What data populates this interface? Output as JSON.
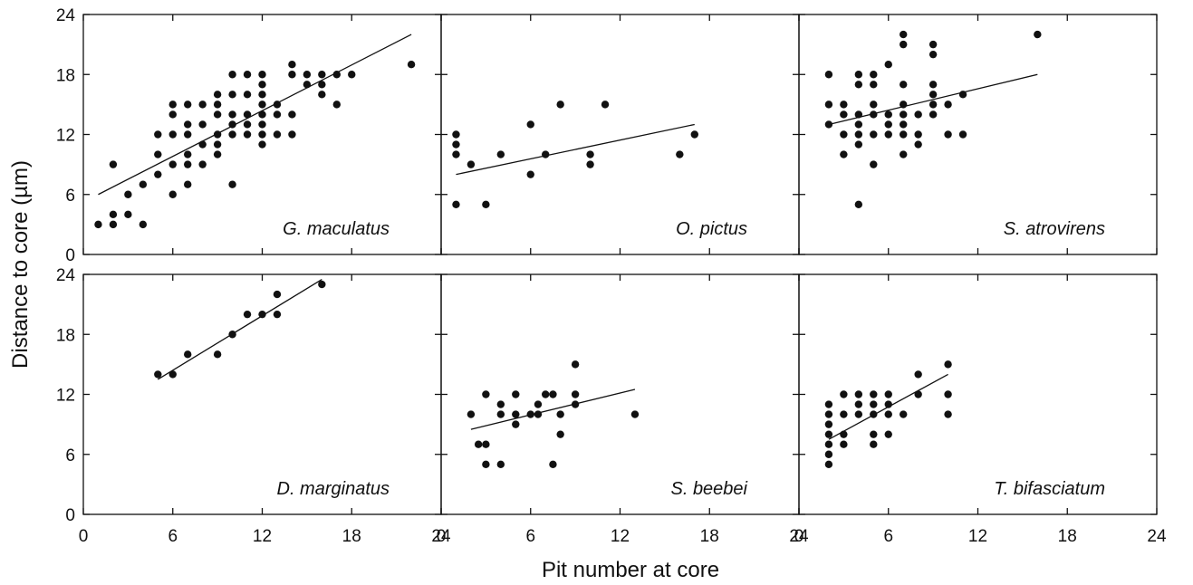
{
  "figure": {
    "ylabel": "Distance to core (µm)",
    "xlabel": "Pit number at core"
  },
  "chart_data": [
    {
      "type": "scatter",
      "label": "G. maculatus",
      "xlim": [
        0,
        24
      ],
      "ylim": [
        0,
        24
      ],
      "xticks": [
        "0",
        "6",
        "12",
        "18",
        "24"
      ],
      "yticks": [
        "0",
        "6",
        "12",
        "18",
        "24"
      ],
      "points": [
        [
          1,
          3
        ],
        [
          2,
          3
        ],
        [
          2,
          4
        ],
        [
          2,
          9
        ],
        [
          3,
          4
        ],
        [
          3,
          6
        ],
        [
          4,
          3
        ],
        [
          4,
          7
        ],
        [
          5,
          8
        ],
        [
          5,
          10
        ],
        [
          5,
          12
        ],
        [
          6,
          6
        ],
        [
          6,
          9
        ],
        [
          6,
          12
        ],
        [
          6,
          14
        ],
        [
          6,
          15
        ],
        [
          7,
          7
        ],
        [
          7,
          9
        ],
        [
          7,
          10
        ],
        [
          7,
          12
        ],
        [
          7,
          13
        ],
        [
          7,
          15
        ],
        [
          8,
          9
        ],
        [
          8,
          11
        ],
        [
          8,
          13
        ],
        [
          8,
          15
        ],
        [
          9,
          10
        ],
        [
          9,
          11
        ],
        [
          9,
          12
        ],
        [
          9,
          14
        ],
        [
          9,
          15
        ],
        [
          9,
          16
        ],
        [
          10,
          7
        ],
        [
          10,
          12
        ],
        [
          10,
          13
        ],
        [
          10,
          14
        ],
        [
          10,
          16
        ],
        [
          10,
          18
        ],
        [
          11,
          12
        ],
        [
          11,
          13
        ],
        [
          11,
          14
        ],
        [
          11,
          16
        ],
        [
          11,
          18
        ],
        [
          12,
          11
        ],
        [
          12,
          12
        ],
        [
          12,
          13
        ],
        [
          12,
          14
        ],
        [
          12,
          15
        ],
        [
          12,
          16
        ],
        [
          12,
          17
        ],
        [
          12,
          18
        ],
        [
          13,
          12
        ],
        [
          13,
          14
        ],
        [
          13,
          15
        ],
        [
          14,
          12
        ],
        [
          14,
          14
        ],
        [
          14,
          18
        ],
        [
          14,
          19
        ],
        [
          15,
          17
        ],
        [
          15,
          18
        ],
        [
          16,
          16
        ],
        [
          16,
          17
        ],
        [
          16,
          18
        ],
        [
          17,
          15
        ],
        [
          17,
          18
        ],
        [
          18,
          18
        ],
        [
          22,
          19
        ]
      ],
      "fit": [
        [
          1,
          6
        ],
        [
          22,
          22
        ]
      ]
    },
    {
      "type": "scatter",
      "label": "O. pictus",
      "xlim": [
        0,
        24
      ],
      "ylim": [
        0,
        24
      ],
      "xticks": [
        "0",
        "6",
        "12",
        "18",
        "24"
      ],
      "yticks": [
        "",
        "",
        "",
        "",
        ""
      ],
      "points": [
        [
          1,
          5
        ],
        [
          1,
          10
        ],
        [
          1,
          11
        ],
        [
          1,
          12
        ],
        [
          2,
          9
        ],
        [
          3,
          5
        ],
        [
          4,
          10
        ],
        [
          6,
          8
        ],
        [
          6,
          13
        ],
        [
          7,
          10
        ],
        [
          8,
          15
        ],
        [
          10,
          9
        ],
        [
          10,
          10
        ],
        [
          11,
          15
        ],
        [
          16,
          10
        ],
        [
          17,
          12
        ]
      ],
      "fit": [
        [
          1,
          8
        ],
        [
          17,
          13
        ]
      ]
    },
    {
      "type": "scatter",
      "label": "S. atrovirens",
      "xlim": [
        0,
        24
      ],
      "ylim": [
        0,
        24
      ],
      "xticks": [
        "0",
        "6",
        "12",
        "18",
        "24"
      ],
      "yticks": [
        "",
        "",
        "",
        "",
        ""
      ],
      "points": [
        [
          2,
          13
        ],
        [
          2,
          15
        ],
        [
          2,
          18
        ],
        [
          3,
          10
        ],
        [
          3,
          12
        ],
        [
          3,
          14
        ],
        [
          3,
          15
        ],
        [
          4,
          5
        ],
        [
          4,
          11
        ],
        [
          4,
          12
        ],
        [
          4,
          13
        ],
        [
          4,
          14
        ],
        [
          4,
          17
        ],
        [
          4,
          18
        ],
        [
          5,
          9
        ],
        [
          5,
          12
        ],
        [
          5,
          14
        ],
        [
          5,
          15
        ],
        [
          5,
          17
        ],
        [
          5,
          18
        ],
        [
          6,
          12
        ],
        [
          6,
          13
        ],
        [
          6,
          14
        ],
        [
          6,
          19
        ],
        [
          7,
          10
        ],
        [
          7,
          12
        ],
        [
          7,
          13
        ],
        [
          7,
          14
        ],
        [
          7,
          15
        ],
        [
          7,
          17
        ],
        [
          7,
          21
        ],
        [
          7,
          22
        ],
        [
          8,
          11
        ],
        [
          8,
          12
        ],
        [
          8,
          14
        ],
        [
          9,
          14
        ],
        [
          9,
          15
        ],
        [
          9,
          16
        ],
        [
          9,
          17
        ],
        [
          9,
          20
        ],
        [
          9,
          21
        ],
        [
          10,
          12
        ],
        [
          10,
          15
        ],
        [
          11,
          12
        ],
        [
          11,
          16
        ],
        [
          16,
          22
        ]
      ],
      "fit": [
        [
          2,
          13
        ],
        [
          16,
          18
        ]
      ]
    },
    {
      "type": "scatter",
      "label": "D. marginatus",
      "xlim": [
        0,
        24
      ],
      "ylim": [
        0,
        24
      ],
      "xticks": [
        "0",
        "6",
        "12",
        "18",
        "24"
      ],
      "yticks": [
        "0",
        "6",
        "12",
        "18",
        "24"
      ],
      "points": [
        [
          5,
          14
        ],
        [
          6,
          14
        ],
        [
          7,
          16
        ],
        [
          9,
          16
        ],
        [
          10,
          18
        ],
        [
          11,
          20
        ],
        [
          12,
          20
        ],
        [
          13,
          20
        ],
        [
          13,
          22
        ],
        [
          16,
          23
        ]
      ],
      "fit": [
        [
          5,
          13.5
        ],
        [
          16,
          23.5
        ]
      ]
    },
    {
      "type": "scatter",
      "label": "S. beebei",
      "xlim": [
        0,
        24
      ],
      "ylim": [
        0,
        24
      ],
      "xticks": [
        "0",
        "6",
        "12",
        "18",
        "24"
      ],
      "yticks": [
        "",
        "",
        "",
        "",
        ""
      ],
      "points": [
        [
          2,
          10
        ],
        [
          2.5,
          7
        ],
        [
          3,
          5
        ],
        [
          3,
          7
        ],
        [
          3,
          12
        ],
        [
          4,
          5
        ],
        [
          4,
          10
        ],
        [
          4,
          11
        ],
        [
          5,
          9
        ],
        [
          5,
          10
        ],
        [
          5,
          12
        ],
        [
          6,
          10
        ],
        [
          6.5,
          10
        ],
        [
          6.5,
          11
        ],
        [
          7,
          12
        ],
        [
          7.5,
          5
        ],
        [
          7.5,
          12
        ],
        [
          8,
          8
        ],
        [
          8,
          10
        ],
        [
          9,
          11
        ],
        [
          9,
          12
        ],
        [
          9,
          15
        ],
        [
          13,
          10
        ]
      ],
      "fit": [
        [
          2,
          8.5
        ],
        [
          13,
          12.5
        ]
      ]
    },
    {
      "type": "scatter",
      "label": "T. bifasciatum",
      "xlim": [
        0,
        24
      ],
      "ylim": [
        0,
        24
      ],
      "xticks": [
        "0",
        "6",
        "12",
        "18",
        "24"
      ],
      "yticks": [
        "",
        "",
        "",
        "",
        ""
      ],
      "points": [
        [
          2,
          5
        ],
        [
          2,
          6
        ],
        [
          2,
          7
        ],
        [
          2,
          8
        ],
        [
          2,
          9
        ],
        [
          2,
          10
        ],
        [
          2,
          11
        ],
        [
          3,
          7
        ],
        [
          3,
          8
        ],
        [
          3,
          10
        ],
        [
          3,
          12
        ],
        [
          4,
          10
        ],
        [
          4,
          11
        ],
        [
          4,
          12
        ],
        [
          5,
          7
        ],
        [
          5,
          8
        ],
        [
          5,
          10
        ],
        [
          5,
          11
        ],
        [
          5,
          12
        ],
        [
          6,
          8
        ],
        [
          6,
          10
        ],
        [
          6,
          11
        ],
        [
          6,
          12
        ],
        [
          7,
          10
        ],
        [
          8,
          12
        ],
        [
          8,
          14
        ],
        [
          10,
          10
        ],
        [
          10,
          12
        ],
        [
          10,
          15
        ]
      ],
      "fit": [
        [
          2,
          7.5
        ],
        [
          10,
          14
        ]
      ]
    }
  ]
}
